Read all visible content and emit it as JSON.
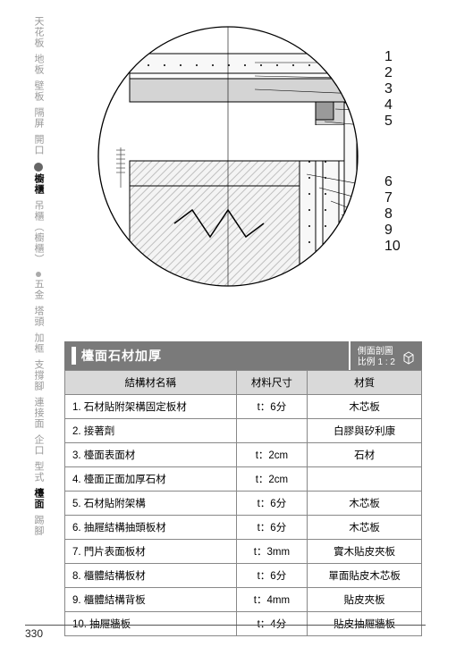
{
  "sidebar": {
    "items": [
      {
        "label": "天花板",
        "bold": false
      },
      {
        "label": "地板",
        "bold": false
      },
      {
        "label": "壁板",
        "bold": false
      },
      {
        "label": "隔屏",
        "bold": false
      },
      {
        "label": "開口",
        "bold": false
      },
      {
        "label": "櫥櫃",
        "bold": true
      },
      {
        "label": "吊櫃︵櫥櫃︶",
        "bold": false
      },
      {
        "label": "五金",
        "bold": false
      },
      {
        "label": "塔頭",
        "bold": false
      },
      {
        "label": "加框",
        "bold": false
      },
      {
        "label": "支撐腳",
        "bold": false
      },
      {
        "label": "連接面",
        "bold": false
      },
      {
        "label": "企口",
        "bold": false
      },
      {
        "label": "型式",
        "bold": false
      },
      {
        "label": "檯面",
        "bold": true
      },
      {
        "label": "踢腳",
        "bold": false
      }
    ],
    "dot1_after_index": 4,
    "dot2_after_index": 6
  },
  "diagram": {
    "labels_top": [
      "1",
      "2",
      "3",
      "4",
      "5"
    ],
    "labels_bottom": [
      "6",
      "7",
      "8",
      "9",
      "10"
    ],
    "circle_radius": 145,
    "stroke": "#000000",
    "fill_light": "#f7f7f7",
    "fill_mid": "#d4d4d4",
    "fill_dark": "#9a9a9a",
    "hatch": "#bfbfbf"
  },
  "table": {
    "title": "檯面石材加厚",
    "title_right_line1": "側面剖圖",
    "title_right_line2": "比例 1 : 2",
    "columns": [
      "結構材名稱",
      "材料尺寸",
      "材質"
    ],
    "col_widths": [
      "48%",
      "20%",
      "32%"
    ],
    "rows": [
      [
        "1. 石材貼附架構固定板材",
        "t：6分",
        "木芯板"
      ],
      [
        "2. 接著劑",
        "",
        "白膠與矽利康"
      ],
      [
        "3. 檯面表面材",
        "t：2cm",
        "石材"
      ],
      [
        "4. 檯面正面加厚石材",
        "t：2cm",
        ""
      ],
      [
        "5. 石材貼附架構",
        "t：6分",
        "木芯板"
      ],
      [
        "6. 抽屜結構抽頭板材",
        "t：6分",
        "木芯板"
      ],
      [
        "7. 門片表面板材",
        "t：3mm",
        "實木貼皮夾板"
      ],
      [
        "8. 櫃體結構板材",
        "t：6分",
        "單面貼皮木芯板"
      ],
      [
        "9. 櫃體結構背板",
        "t：4mm",
        "貼皮夾板"
      ],
      [
        "10. 抽屜牆板",
        "t：4分",
        "貼皮抽屜牆板"
      ]
    ]
  },
  "page_number": "330"
}
